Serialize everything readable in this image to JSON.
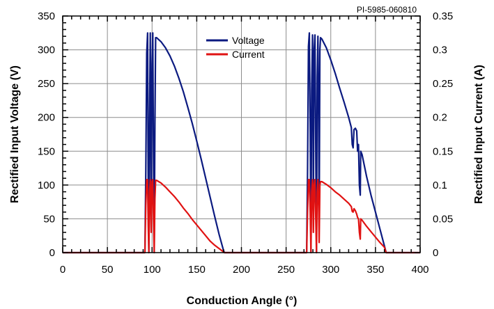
{
  "chart_data": {
    "type": "line",
    "reference_code": "PI-5985-060810",
    "xlabel": "Conduction Angle (°)",
    "ylabel_left": "Rectified Input Voltage (V)",
    "ylabel_right": "Rectified Input Current (A)",
    "xlim": [
      0,
      400
    ],
    "ylim_left": [
      0,
      350
    ],
    "ylim_right": [
      0,
      0.35
    ],
    "x_ticks": [
      "0",
      "50",
      "100",
      "150",
      "200",
      "250",
      "300",
      "350",
      "400"
    ],
    "y_left_ticks": [
      "0",
      "50",
      "100",
      "150",
      "200",
      "250",
      "300",
      "350"
    ],
    "y_right_ticks": [
      "0",
      "0.05",
      "0.1",
      "0.15",
      "0.2",
      "0.25",
      "0.3",
      "0.35"
    ],
    "grid": true,
    "legend_position": "top-center",
    "series": [
      {
        "name": "Voltage",
        "axis": "left",
        "color": "#0b1a80",
        "points": [
          [
            0,
            0
          ],
          [
            92,
            0
          ],
          [
            93,
            120
          ],
          [
            94,
            295
          ],
          [
            95,
            325
          ],
          [
            95.7,
            100
          ],
          [
            96.4,
            0
          ],
          [
            97.2,
            200
          ],
          [
            98,
            325
          ],
          [
            99,
            60
          ],
          [
            100,
            280
          ],
          [
            100.8,
            325
          ],
          [
            101.6,
            140
          ],
          [
            102.4,
            0
          ],
          [
            103.2,
            190
          ],
          [
            104,
            318
          ],
          [
            105,
            318
          ],
          [
            110,
            312
          ],
          [
            115,
            303
          ],
          [
            120,
            291
          ],
          [
            125,
            276
          ],
          [
            130,
            258
          ],
          [
            135,
            238
          ],
          [
            140,
            215
          ],
          [
            145,
            191
          ],
          [
            150,
            165
          ],
          [
            155,
            138
          ],
          [
            160,
            110
          ],
          [
            165,
            82
          ],
          [
            170,
            54
          ],
          [
            175,
            27
          ],
          [
            180,
            3
          ],
          [
            181,
            0
          ],
          [
            273,
            0
          ],
          [
            274,
            120
          ],
          [
            275,
            305
          ],
          [
            276,
            325
          ],
          [
            277,
            180
          ],
          [
            277.8,
            0
          ],
          [
            278.6,
            240
          ],
          [
            279.6,
            322
          ],
          [
            280.5,
            80
          ],
          [
            281.4,
            300
          ],
          [
            282.3,
            322
          ],
          [
            283.2,
            150
          ],
          [
            284,
            0
          ],
          [
            284.8,
            260
          ],
          [
            285.6,
            320
          ],
          [
            286.4,
            200
          ],
          [
            287,
            40
          ],
          [
            287.8,
            300
          ],
          [
            288.5,
            318
          ],
          [
            290,
            316
          ],
          [
            295,
            303
          ],
          [
            300,
            285
          ],
          [
            305,
            265
          ],
          [
            310,
            243
          ],
          [
            315,
            222
          ],
          [
            320,
            200
          ],
          [
            323,
            185
          ],
          [
            324,
            160
          ],
          [
            325,
            155
          ],
          [
            326,
            182
          ],
          [
            327.5,
            184
          ],
          [
            329,
            180
          ],
          [
            330,
            150
          ],
          [
            331,
            160
          ],
          [
            332,
            100
          ],
          [
            333,
            85
          ],
          [
            333.5,
            150
          ],
          [
            335,
            145
          ],
          [
            340,
            113
          ],
          [
            345,
            85
          ],
          [
            350,
            60
          ],
          [
            355,
            35
          ],
          [
            360,
            10
          ],
          [
            362,
            0
          ],
          [
            400,
            0
          ]
        ]
      },
      {
        "name": "Current",
        "axis": "right",
        "color": "#e01212",
        "points": [
          [
            0,
            0
          ],
          [
            92,
            0
          ],
          [
            93,
            0.07
          ],
          [
            94,
            0.108
          ],
          [
            95,
            0.108
          ],
          [
            95.7,
            0.04
          ],
          [
            96.4,
            0
          ],
          [
            97.2,
            0.09
          ],
          [
            98,
            0.108
          ],
          [
            99,
            0.03
          ],
          [
            100,
            0.105
          ],
          [
            100.8,
            0.108
          ],
          [
            101.6,
            0.05
          ],
          [
            102.4,
            0
          ],
          [
            103.2,
            0.08
          ],
          [
            104,
            0.107
          ],
          [
            105,
            0.107
          ],
          [
            110,
            0.103
          ],
          [
            115,
            0.097
          ],
          [
            120,
            0.09
          ],
          [
            125,
            0.083
          ],
          [
            130,
            0.075
          ],
          [
            135,
            0.066
          ],
          [
            140,
            0.058
          ],
          [
            145,
            0.049
          ],
          [
            150,
            0.041
          ],
          [
            155,
            0.033
          ],
          [
            160,
            0.025
          ],
          [
            165,
            0.017
          ],
          [
            170,
            0.011
          ],
          [
            175,
            0.006
          ],
          [
            180,
            0.001
          ],
          [
            181,
            0
          ],
          [
            273,
            0
          ],
          [
            274,
            0.06
          ],
          [
            275,
            0.108
          ],
          [
            276,
            0.108
          ],
          [
            277,
            0.06
          ],
          [
            277.8,
            0
          ],
          [
            278.6,
            0.09
          ],
          [
            279.6,
            0.108
          ],
          [
            280.5,
            0.03
          ],
          [
            281.4,
            0.1
          ],
          [
            282.3,
            0.108
          ],
          [
            283.2,
            0.05
          ],
          [
            284,
            0
          ],
          [
            284.8,
            0.09
          ],
          [
            285.6,
            0.108
          ],
          [
            286.4,
            0.07
          ],
          [
            287,
            0.015
          ],
          [
            287.8,
            0.1
          ],
          [
            288.5,
            0.105
          ],
          [
            290,
            0.105
          ],
          [
            295,
            0.101
          ],
          [
            300,
            0.096
          ],
          [
            305,
            0.09
          ],
          [
            310,
            0.085
          ],
          [
            315,
            0.079
          ],
          [
            320,
            0.073
          ],
          [
            323,
            0.068
          ],
          [
            324,
            0.061
          ],
          [
            325,
            0.06
          ],
          [
            326,
            0.065
          ],
          [
            327.5,
            0.062
          ],
          [
            329,
            0.057
          ],
          [
            330,
            0.052
          ],
          [
            331,
            0.05
          ],
          [
            332,
            0.03
          ],
          [
            333,
            0.02
          ],
          [
            333.5,
            0.05
          ],
          [
            335,
            0.048
          ],
          [
            340,
            0.039
          ],
          [
            345,
            0.031
          ],
          [
            350,
            0.023
          ],
          [
            355,
            0.015
          ],
          [
            360,
            0.008
          ],
          [
            362,
            0
          ],
          [
            400,
            0
          ]
        ]
      }
    ]
  }
}
